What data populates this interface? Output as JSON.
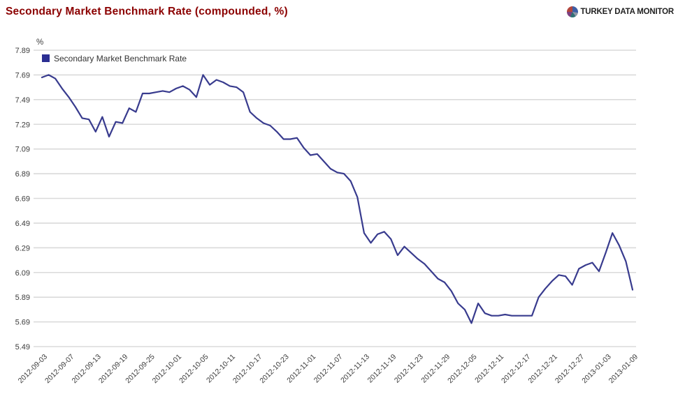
{
  "header": {
    "brand": "TURKEY DATA MONITOR"
  },
  "chart_data": {
    "type": "line",
    "title": "Secondary Market Benchmark Rate (compounded, %)",
    "unit_label": "%",
    "legend": [
      "Secondary Market Benchmark Rate"
    ],
    "legend_position": "top-left",
    "grid": "horizontal",
    "ylim": [
      5.49,
      7.89
    ],
    "y_tick_step": 0.2,
    "y_ticks": [
      7.89,
      7.69,
      7.49,
      7.29,
      7.09,
      6.89,
      6.69,
      6.49,
      6.29,
      6.09,
      5.89,
      5.69,
      5.49
    ],
    "x_tick_every": 4,
    "x_tick_labels": [
      "2012-09-03",
      "2012-09-07",
      "2012-09-13",
      "2012-09-19",
      "2012-09-25",
      "2012-10-01",
      "2012-10-05",
      "2012-10-11",
      "2012-10-17",
      "2012-10-23",
      "2012-11-01",
      "2012-11-07",
      "2012-11-13",
      "2012-11-19",
      "2012-11-23",
      "2012-11-29",
      "2012-12-05",
      "2012-12-11",
      "2012-12-17",
      "2012-12-21",
      "2012-12-27",
      "2013-01-03",
      "2013-01-09"
    ],
    "values": [
      7.67,
      7.69,
      7.66,
      7.58,
      7.51,
      7.43,
      7.34,
      7.33,
      7.23,
      7.35,
      7.19,
      7.31,
      7.3,
      7.42,
      7.39,
      7.54,
      7.54,
      7.55,
      7.56,
      7.55,
      7.58,
      7.6,
      7.57,
      7.51,
      7.69,
      7.61,
      7.65,
      7.63,
      7.6,
      7.59,
      7.55,
      7.39,
      7.34,
      7.3,
      7.28,
      7.23,
      7.17,
      7.17,
      7.18,
      7.1,
      7.04,
      7.05,
      6.99,
      6.93,
      6.9,
      6.89,
      6.83,
      6.7,
      6.41,
      6.33,
      6.4,
      6.42,
      6.36,
      6.23,
      6.3,
      6.25,
      6.2,
      6.16,
      6.1,
      6.04,
      6.01,
      5.94,
      5.84,
      5.79,
      5.68,
      5.84,
      5.76,
      5.74,
      5.74,
      5.75,
      5.74,
      5.74,
      5.74,
      5.74,
      5.89,
      5.96,
      6.02,
      6.07,
      6.06,
      5.99,
      6.12,
      6.15,
      6.17,
      6.1,
      6.25,
      6.41,
      6.31,
      6.18,
      5.95
    ],
    "colors": {
      "line": "#383B8E",
      "legend_marker": "#2B2E92",
      "grid": "#DADADA",
      "title": "#8B0000",
      "axis_text": "#3C3C3C"
    }
  }
}
